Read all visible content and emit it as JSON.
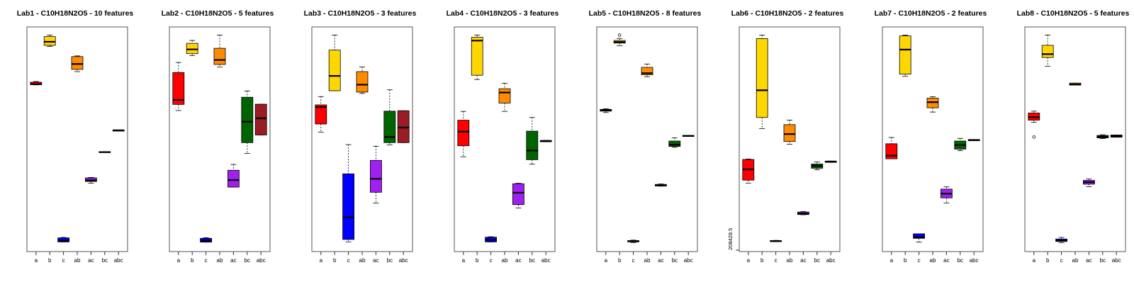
{
  "chart_data": [
    {
      "type": "box",
      "title": "Lab1 - C10H18N2O5 - 10 features",
      "categories": [
        "a",
        "b",
        "c",
        "ab",
        "ac",
        "bc",
        "abc"
      ],
      "boxes": [
        {
          "category": "a",
          "color": "#ff0000",
          "stats": [
            0.742,
            0.743,
            0.745,
            0.754,
            0.757
          ]
        },
        {
          "category": "b",
          "color": "#ffd700",
          "stats": [
            0.913,
            0.918,
            0.934,
            0.957,
            0.964
          ]
        },
        {
          "category": "c",
          "color": "#0000ff",
          "stats": [
            0.043,
            0.043,
            0.049,
            0.061,
            0.063
          ]
        },
        {
          "category": "ab",
          "color": "#ff8c00",
          "stats": [
            0.801,
            0.811,
            0.835,
            0.868,
            0.871
          ]
        },
        {
          "category": "ac",
          "color": "#a020f0",
          "stats": [
            0.304,
            0.312,
            0.317,
            0.328,
            0.33
          ]
        },
        {
          "category": "bc",
          "color": "#000000",
          "stats": [
            0.443,
            0.443,
            0.443,
            0.445,
            0.445
          ]
        },
        {
          "category": "abc",
          "color": "#000000",
          "stats": [
            0.539,
            0.539,
            0.54,
            0.541,
            0.541
          ]
        }
      ],
      "outliers": []
    },
    {
      "type": "box",
      "title": "Lab2 - C10H18N2O5 - 5 features",
      "categories": [
        "a",
        "b",
        "c",
        "ab",
        "ac",
        "bc",
        "abc"
      ],
      "boxes": [
        {
          "category": "a",
          "color": "#ff0000",
          "stats": [
            0.628,
            0.655,
            0.675,
            0.797,
            0.842
          ]
        },
        {
          "category": "b",
          "color": "#ffd700",
          "stats": [
            0.872,
            0.881,
            0.9,
            0.927,
            0.94
          ]
        },
        {
          "category": "c",
          "color": "#0000ff",
          "stats": [
            0.042,
            0.042,
            0.049,
            0.059,
            0.062
          ]
        },
        {
          "category": "ab",
          "color": "#ff8c00",
          "stats": [
            0.821,
            0.833,
            0.853,
            0.905,
            0.964
          ]
        },
        {
          "category": "ac",
          "color": "#a020f0",
          "stats": [
            0.287,
            0.287,
            0.318,
            0.362,
            0.388
          ]
        },
        {
          "category": "bc",
          "color": "#006400",
          "stats": [
            0.437,
            0.485,
            0.578,
            0.687,
            0.715
          ]
        },
        {
          "category": "abc",
          "color": "#9b1c24",
          "stats": [
            0.519,
            0.519,
            0.593,
            0.656,
            0.656
          ]
        }
      ],
      "outliers": []
    },
    {
      "type": "box",
      "title": "Lab3 - C10H18N2O5 - 3 features",
      "categories": [
        "a",
        "b",
        "c",
        "ab",
        "ac",
        "bc",
        "abc"
      ],
      "boxes": [
        {
          "category": "a",
          "color": "#ff0000",
          "stats": [
            0.532,
            0.568,
            0.643,
            0.653,
            0.69
          ]
        },
        {
          "category": "b",
          "color": "#ffd700",
          "stats": [
            0.716,
            0.716,
            0.782,
            0.897,
            0.964
          ]
        },
        {
          "category": "c",
          "color": "#0000ff",
          "stats": [
            0.043,
            0.054,
            0.152,
            0.346,
            0.476
          ]
        },
        {
          "category": "ab",
          "color": "#ff8c00",
          "stats": [
            0.704,
            0.71,
            0.743,
            0.801,
            0.822
          ]
        },
        {
          "category": "ac",
          "color": "#a020f0",
          "stats": [
            0.216,
            0.264,
            0.324,
            0.406,
            0.469
          ]
        },
        {
          "category": "bc",
          "color": "#006400",
          "stats": [
            0.475,
            0.485,
            0.51,
            0.625,
            0.72
          ]
        },
        {
          "category": "abc",
          "color": "#9b1c24",
          "stats": [
            0.485,
            0.485,
            0.552,
            0.627,
            0.627
          ]
        }
      ],
      "outliers": []
    },
    {
      "type": "box",
      "title": "Lab4 - C10H18N2O5 - 3 features",
      "categories": [
        "a",
        "b",
        "c",
        "ab",
        "ac",
        "bc",
        "abc"
      ],
      "boxes": [
        {
          "category": "a",
          "color": "#ff0000",
          "stats": [
            0.422,
            0.471,
            0.534,
            0.585,
            0.624
          ]
        },
        {
          "category": "b",
          "color": "#ffd700",
          "stats": [
            0.766,
            0.785,
            0.939,
            0.954,
            0.964
          ]
        },
        {
          "category": "c",
          "color": "#0000ff",
          "stats": [
            0.043,
            0.043,
            0.052,
            0.064,
            0.066
          ]
        },
        {
          "category": "ab",
          "color": "#ff8c00",
          "stats": [
            0.624,
            0.661,
            0.708,
            0.725,
            0.749
          ]
        },
        {
          "category": "ac",
          "color": "#a020f0",
          "stats": [
            0.194,
            0.209,
            0.262,
            0.302,
            0.304
          ]
        },
        {
          "category": "bc",
          "color": "#006400",
          "stats": [
            0.389,
            0.409,
            0.45,
            0.536,
            0.597
          ]
        },
        {
          "category": "abc",
          "color": "#9b1c24",
          "stats": [
            0.49,
            0.49,
            0.491,
            0.495,
            0.495
          ]
        }
      ],
      "outliers": []
    },
    {
      "type": "box",
      "title": "Lab5 - C10H18N2O5 - 8 features",
      "categories": [
        "a",
        "b",
        "c",
        "ab",
        "ac",
        "bc",
        "abc"
      ],
      "boxes": [
        {
          "category": "a",
          "color": "#ff0000",
          "stats": [
            0.619,
            0.625,
            0.63,
            0.633,
            0.636
          ]
        },
        {
          "category": "b",
          "color": "#ffd700",
          "stats": [
            0.916,
            0.928,
            0.933,
            0.94,
            0.949
          ]
        },
        {
          "category": "c",
          "color": "#0000ff",
          "stats": [
            0.04,
            0.043,
            0.046,
            0.049,
            0.051
          ]
        },
        {
          "category": "ab",
          "color": "#ff8c00",
          "stats": [
            0.778,
            0.787,
            0.794,
            0.82,
            0.835
          ]
        },
        {
          "category": "ac",
          "color": "#a020f0",
          "stats": [
            0.291,
            0.292,
            0.294,
            0.299,
            0.301
          ]
        },
        {
          "category": "bc",
          "color": "#006400",
          "stats": [
            0.464,
            0.468,
            0.476,
            0.492,
            0.506
          ]
        },
        {
          "category": "abc",
          "color": "#000000",
          "stats": [
            0.513,
            0.513,
            0.515,
            0.517,
            0.517
          ]
        }
      ],
      "outliers": [
        {
          "category": "b",
          "y": 0.964
        }
      ]
    },
    {
      "type": "box",
      "title": "Lab6 - C10H18N2O5 - 2 features",
      "categories": [
        "a",
        "b",
        "c",
        "ab",
        "ac",
        "bc",
        "abc"
      ],
      "boxes": [
        {
          "category": "a",
          "color": "#ff0000",
          "stats": [
            0.305,
            0.318,
            0.366,
            0.41,
            0.412
          ]
        },
        {
          "category": "b",
          "color": "#ffd700",
          "stats": [
            0.547,
            0.597,
            0.718,
            0.948,
            0.964
          ]
        },
        {
          "category": "c",
          "color": "#0000ff",
          "stats": [
            0.044,
            0.045,
            0.047,
            0.049,
            0.05
          ]
        },
        {
          "category": "ab",
          "color": "#ff8c00",
          "stats": [
            0.478,
            0.49,
            0.523,
            0.565,
            0.585
          ]
        },
        {
          "category": "ac",
          "color": "#a020f0",
          "stats": [
            0.164,
            0.165,
            0.169,
            0.176,
            0.178
          ]
        },
        {
          "category": "bc",
          "color": "#006400",
          "stats": [
            0.364,
            0.371,
            0.381,
            0.39,
            0.399
          ]
        },
        {
          "category": "abc",
          "color": "#000000",
          "stats": [
            0.397,
            0.397,
            0.4,
            0.403,
            0.403
          ]
        }
      ],
      "outliers": [],
      "ylabel_tick": "208428.5"
    },
    {
      "type": "box",
      "title": "Lab7 - C10H18N2O5 - 2 features",
      "categories": [
        "a",
        "b",
        "c",
        "ab",
        "ac",
        "bc",
        "abc"
      ],
      "boxes": [
        {
          "category": "a",
          "color": "#ff0000",
          "stats": [
            0.413,
            0.413,
            0.427,
            0.48,
            0.508
          ]
        },
        {
          "category": "b",
          "color": "#ffd700",
          "stats": [
            0.78,
            0.79,
            0.899,
            0.96,
            0.964
          ]
        },
        {
          "category": "c",
          "color": "#0000ff",
          "stats": [
            0.042,
            0.059,
            0.064,
            0.079,
            0.079
          ]
        },
        {
          "category": "ab",
          "color": "#ff8c00",
          "stats": [
            0.621,
            0.64,
            0.665,
            0.683,
            0.689
          ]
        },
        {
          "category": "ac",
          "color": "#a020f0",
          "stats": [
            0.216,
            0.239,
            0.258,
            0.278,
            0.288
          ]
        },
        {
          "category": "bc",
          "color": "#006400",
          "stats": [
            0.449,
            0.456,
            0.474,
            0.492,
            0.504
          ]
        },
        {
          "category": "abc",
          "color": "#000000",
          "stats": [
            0.496,
            0.496,
            0.497,
            0.498,
            0.498
          ]
        }
      ],
      "outliers": []
    },
    {
      "type": "box",
      "title": "Lab8 - C10H18N2O5 - 5 features",
      "categories": [
        "a",
        "b",
        "c",
        "ab",
        "ac",
        "bc",
        "abc"
      ],
      "boxes": [
        {
          "category": "a",
          "color": "#ff0000",
          "stats": [
            0.576,
            0.585,
            0.598,
            0.617,
            0.625
          ]
        },
        {
          "category": "b",
          "color": "#ffd700",
          "stats": [
            0.825,
            0.864,
            0.879,
            0.918,
            0.964
          ]
        },
        {
          "category": "c",
          "color": "#0000ff",
          "stats": [
            0.04,
            0.045,
            0.048,
            0.056,
            0.063
          ]
        },
        {
          "category": "ab",
          "color": "#ff8c00",
          "stats": [
            0.741,
            0.741,
            0.744,
            0.75,
            0.75
          ]
        },
        {
          "category": "ac",
          "color": "#a020f0",
          "stats": [
            0.289,
            0.3,
            0.309,
            0.317,
            0.323
          ]
        },
        {
          "category": "bc",
          "color": "#006400",
          "stats": [
            0.503,
            0.506,
            0.511,
            0.517,
            0.52
          ]
        },
        {
          "category": "abc",
          "color": "#9b1c24",
          "stats": [
            0.509,
            0.509,
            0.514,
            0.519,
            0.519
          ]
        }
      ],
      "outliers": [
        {
          "category": "a",
          "y": 0.51
        }
      ]
    }
  ]
}
